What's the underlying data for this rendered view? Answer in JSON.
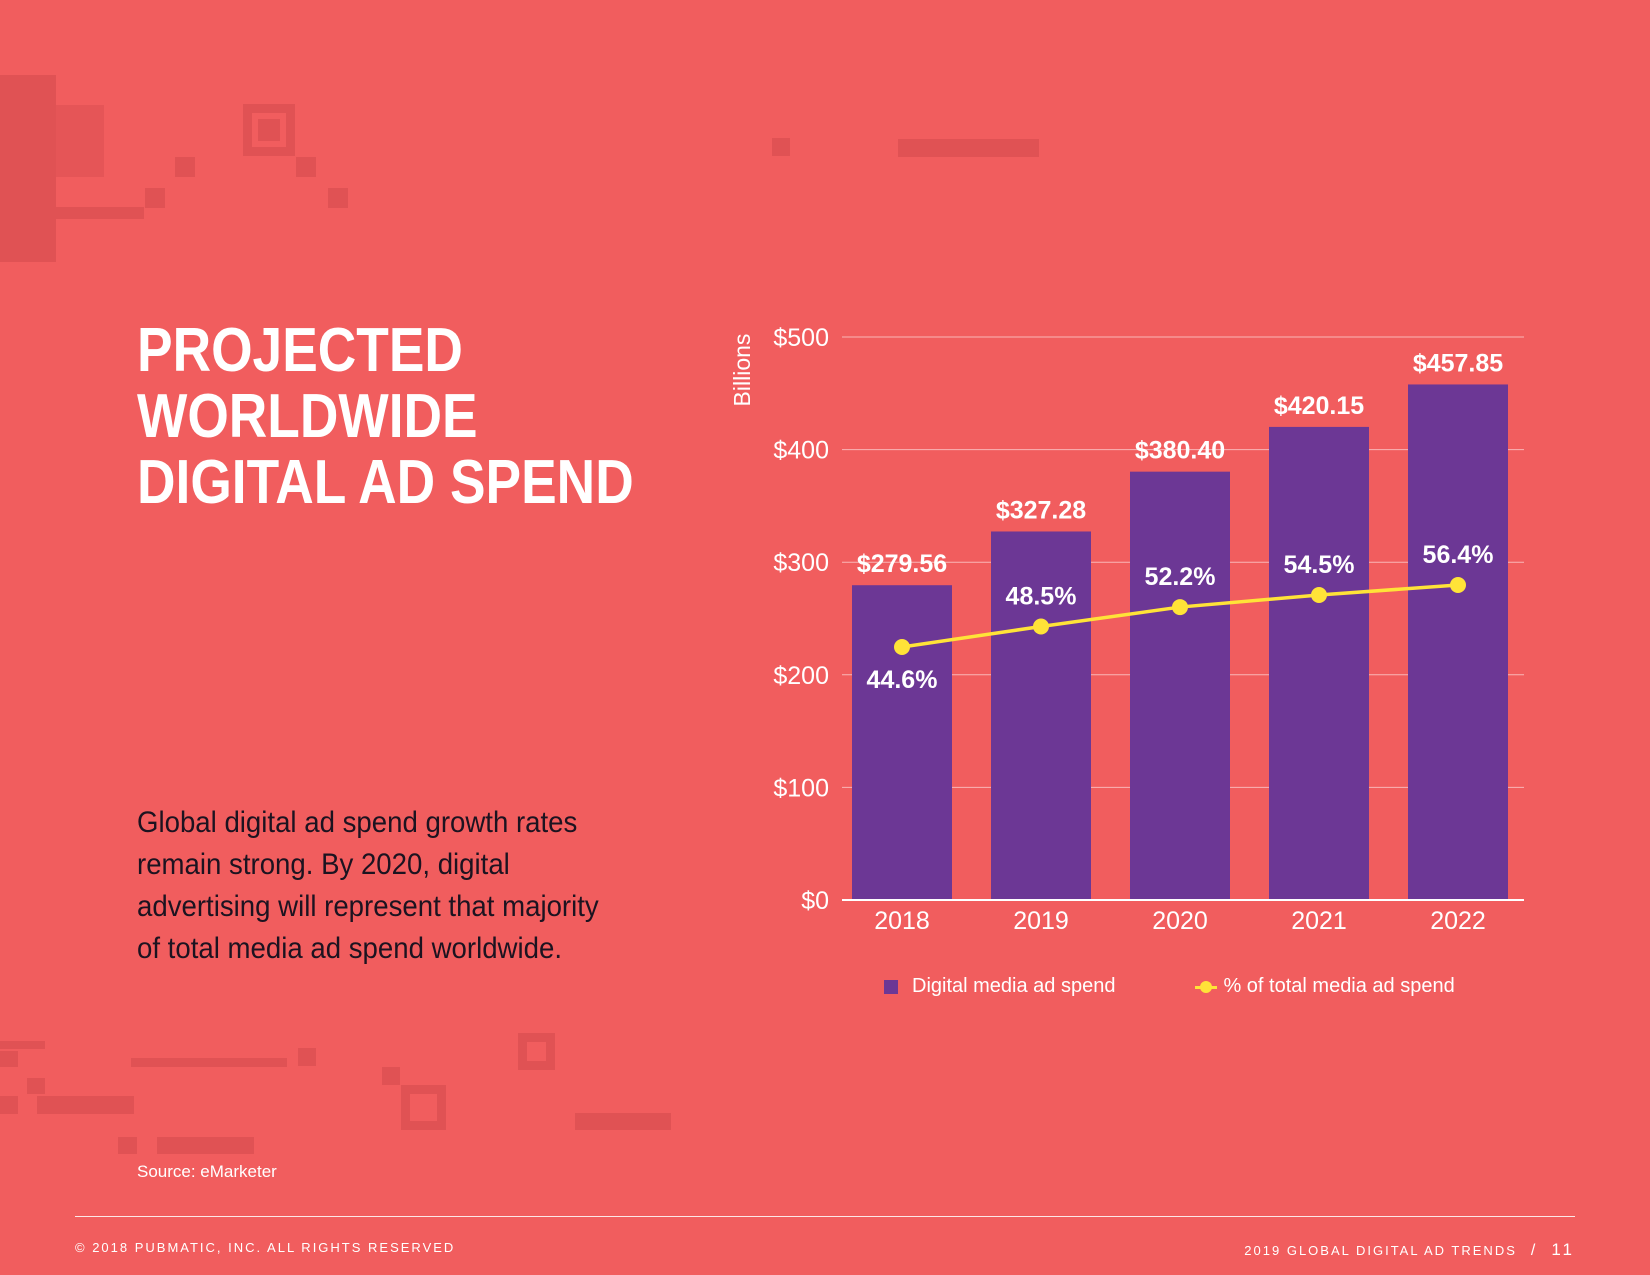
{
  "page": {
    "title_lines": [
      "PROJECTED",
      "WORLDWIDE",
      "DIGITAL AD SPEND"
    ],
    "body": "Global digital ad spend growth rates remain strong. By 2020, digital advertising will represent that majority of total media ad spend worldwide.",
    "source": "Source: eMarketer",
    "footer_left": "© 2018 PUBMATIC, INC. ALL RIGHTS RESERVED",
    "footer_right": "2019 GLOBAL DIGITAL AD TRENDS",
    "footer_sep": "/",
    "page_number": "11"
  },
  "colors": {
    "background": "#F15D5E",
    "bar": "#6C3795",
    "line": "#FFE338",
    "text": "#FFFFFF",
    "body_text": "#1C1320"
  },
  "chart_data": {
    "type": "bar",
    "categories": [
      "2018",
      "2019",
      "2020",
      "2021",
      "2022"
    ],
    "ylabel": "Billions",
    "ylim": [
      0,
      500
    ],
    "yticks": [
      0,
      100,
      200,
      300,
      400,
      500
    ],
    "ytick_labels": [
      "$0",
      "$100",
      "$200",
      "$300",
      "$400",
      "$500"
    ],
    "grid": true,
    "legend_position": "bottom",
    "series": [
      {
        "name": "Digital media ad spend",
        "type": "bar",
        "values": [
          279.56,
          327.28,
          380.4,
          420.15,
          457.85
        ],
        "labels": [
          "$279.56",
          "$327.28",
          "$380.40",
          "$420.15",
          "$457.85"
        ]
      },
      {
        "name": "% of total media ad spend",
        "type": "line",
        "values": [
          44.6,
          48.5,
          52.2,
          54.5,
          56.4
        ],
        "labels": [
          "44.6%",
          "48.5%",
          "52.2%",
          "54.5%",
          "56.4%"
        ],
        "unit": "%"
      }
    ]
  }
}
